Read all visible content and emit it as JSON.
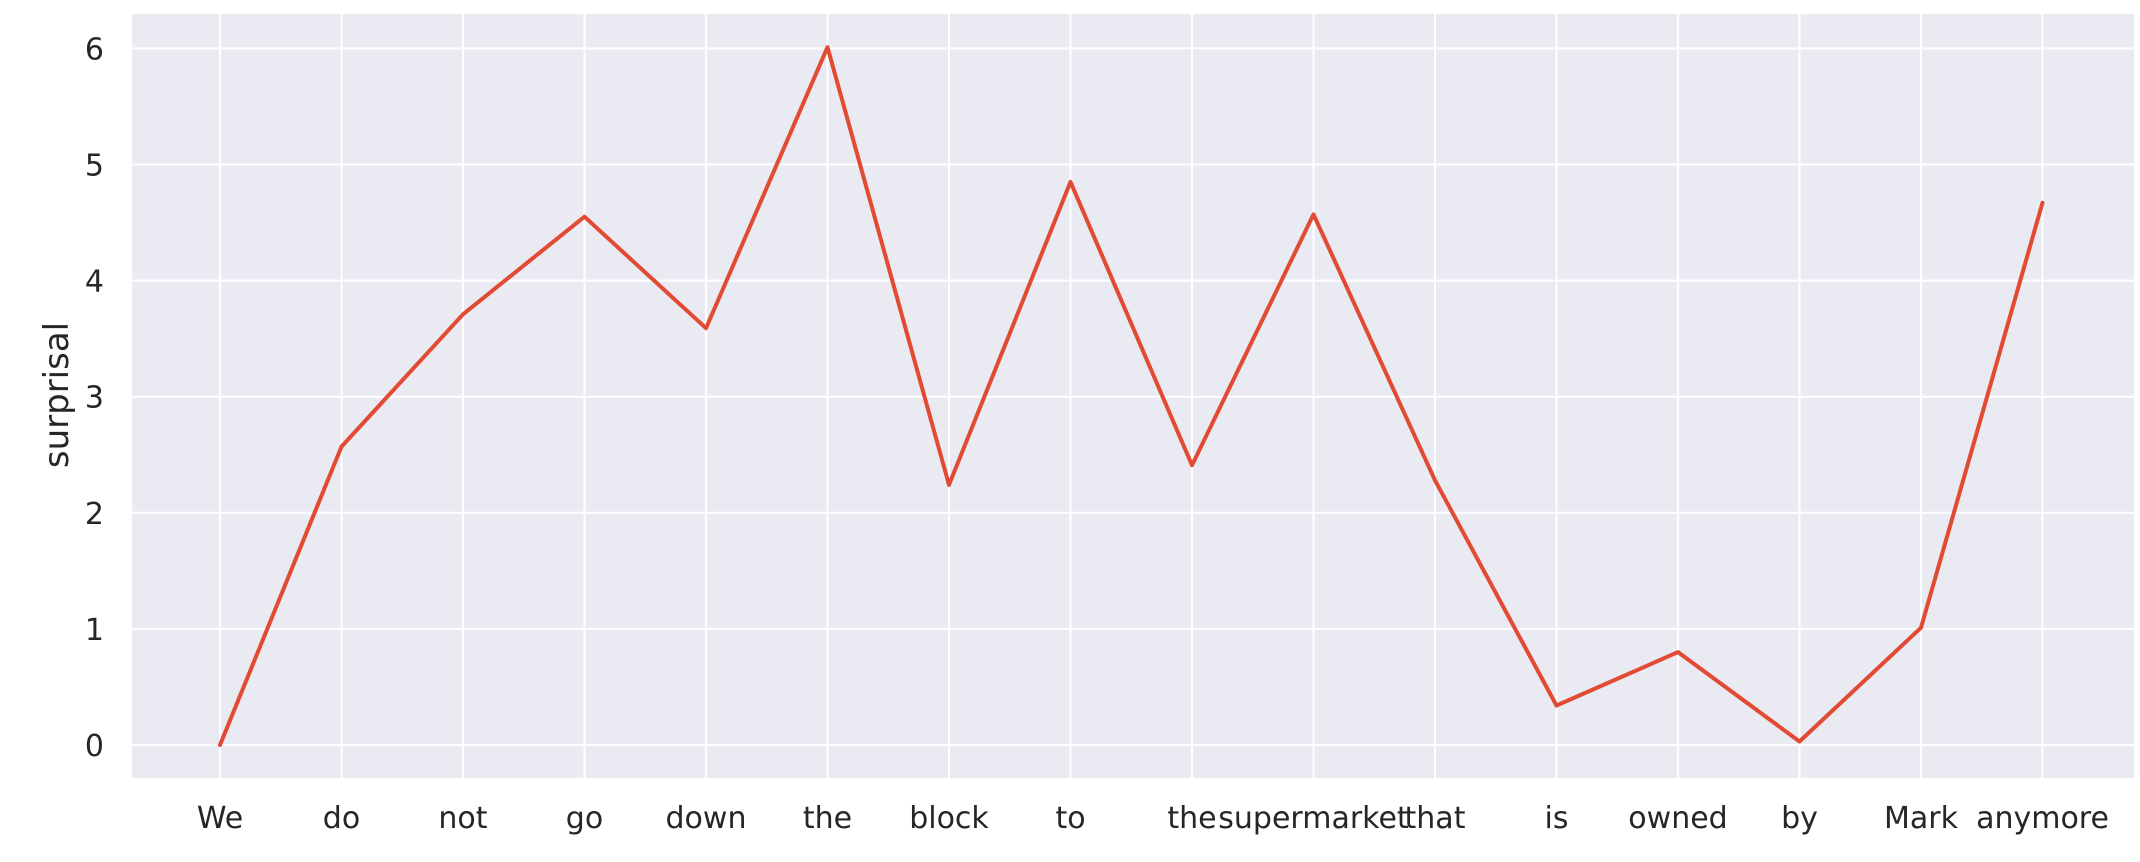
{
  "chart_data": {
    "type": "line",
    "title": "",
    "xlabel": "",
    "ylabel": "surprisal",
    "categories": [
      "We",
      "do",
      "not",
      "go",
      "down",
      "the",
      "block",
      "to",
      "the",
      "supermarket",
      "that",
      "is",
      "owned",
      "by",
      "Mark",
      "anymore"
    ],
    "series": [
      {
        "values": [
          0.0,
          2.57,
          3.71,
          4.55,
          3.59,
          6.01,
          2.24,
          4.85,
          2.41,
          4.57,
          2.28,
          0.34,
          0.8,
          0.03,
          1.01,
          4.67
        ],
        "color": "#e24a33"
      }
    ],
    "yticks": [
      0,
      1,
      2,
      3,
      4,
      5,
      6
    ],
    "ylim": [
      -0.3,
      6.3
    ],
    "grid": true,
    "legend": "none",
    "colors": {
      "background": "#eaeaf2",
      "grid": "#ffffff",
      "line": "#e24a33"
    }
  }
}
